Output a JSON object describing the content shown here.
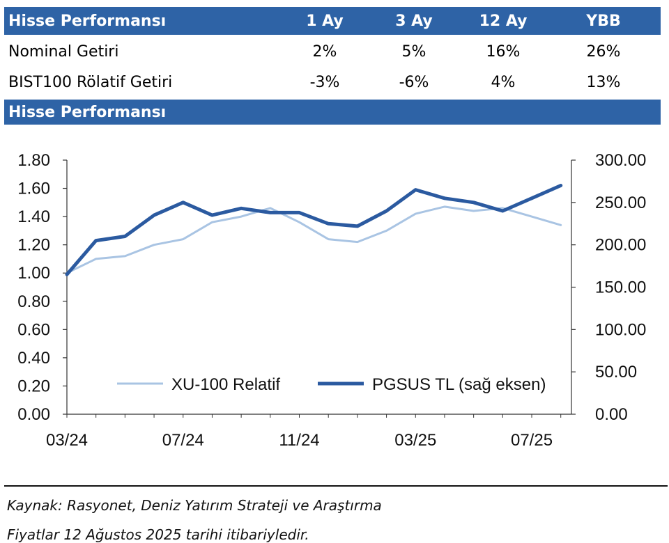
{
  "table": {
    "header": {
      "label": "Hisse Performansı",
      "col1": "1 Ay",
      "col2": "3 Ay",
      "col3": "12 Ay",
      "col4": "YBB"
    },
    "rows": [
      {
        "label": "Nominal Getiri",
        "v1": "2%",
        "v2": "5%",
        "v3": "16%",
        "v4": "26%"
      },
      {
        "label": "BIST100 Rölatif Getiri",
        "v1": "-3%",
        "v2": "-6%",
        "v3": "4%",
        "v4": "13%"
      }
    ]
  },
  "section2_title": "Hisse Performansı",
  "colors": {
    "header_bg": "#2e63a6",
    "series_relative": "#a9c4e3",
    "series_price": "#2b5aa0"
  },
  "chart_data": {
    "type": "line",
    "x_ticks": [
      "03/24",
      "07/24",
      "11/24",
      "03/25",
      "07/25"
    ],
    "y_left": {
      "ticks": [
        "0.00",
        "0.20",
        "0.40",
        "0.60",
        "0.80",
        "1.00",
        "1.20",
        "1.40",
        "1.60",
        "1.80"
      ],
      "range": [
        0,
        1.8
      ]
    },
    "y_right": {
      "ticks": [
        "0.00",
        "50.00",
        "100.00",
        "150.00",
        "200.00",
        "250.00",
        "300.00"
      ],
      "range": [
        0,
        300
      ]
    },
    "x_range": [
      "2024-03",
      "2025-08-12"
    ],
    "series": [
      {
        "name": "XU-100 Relatif",
        "axis": "left",
        "x": [
          "2024-03",
          "2024-04",
          "2024-05",
          "2024-06",
          "2024-07",
          "2024-08",
          "2024-09",
          "2024-10",
          "2024-11",
          "2024-12",
          "2025-01",
          "2025-02",
          "2025-03",
          "2025-04",
          "2025-05",
          "2025-06",
          "2025-07",
          "2025-08"
        ],
        "values": [
          1.0,
          1.1,
          1.12,
          1.2,
          1.24,
          1.36,
          1.4,
          1.46,
          1.36,
          1.24,
          1.22,
          1.3,
          1.42,
          1.47,
          1.44,
          1.46,
          1.4,
          1.34
        ]
      },
      {
        "name": "PGSUS TL (sağ eksen)",
        "axis": "right",
        "x": [
          "2024-03",
          "2024-04",
          "2024-05",
          "2024-06",
          "2024-07",
          "2024-08",
          "2024-09",
          "2024-10",
          "2024-11",
          "2024-12",
          "2025-01",
          "2025-02",
          "2025-03",
          "2025-04",
          "2025-05",
          "2025-06",
          "2025-07",
          "2025-08"
        ],
        "values": [
          165,
          205,
          210,
          235,
          250,
          235,
          243,
          238,
          238,
          225,
          222,
          240,
          265,
          255,
          250,
          240,
          255,
          270
        ]
      }
    ],
    "legend": "bottom"
  },
  "notes": [
    "Kaynak: Rasyonet, Deniz Yatırım Strateji ve Araştırma",
    "Fiyatlar 12 Ağustos 2025 tarihi itibariyledir."
  ]
}
